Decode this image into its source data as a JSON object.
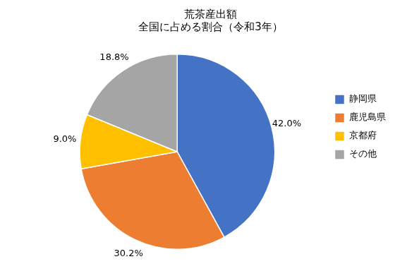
{
  "chart_data": {
    "type": "pie",
    "title": "荒茶産出額\n全国に占める割合（令和3年）",
    "categories": [
      "静岡県",
      "鹿児島県",
      "京都府",
      "その他"
    ],
    "values": [
      42.0,
      30.2,
      9.0,
      18.8
    ],
    "value_labels": [
      "42.0%",
      "30.2%",
      "9.0%",
      "18.8%"
    ],
    "colors": [
      "#4472C4",
      "#ED7D31",
      "#FFC000",
      "#A5A5A5"
    ],
    "data_labels": true,
    "legend": "right"
  }
}
